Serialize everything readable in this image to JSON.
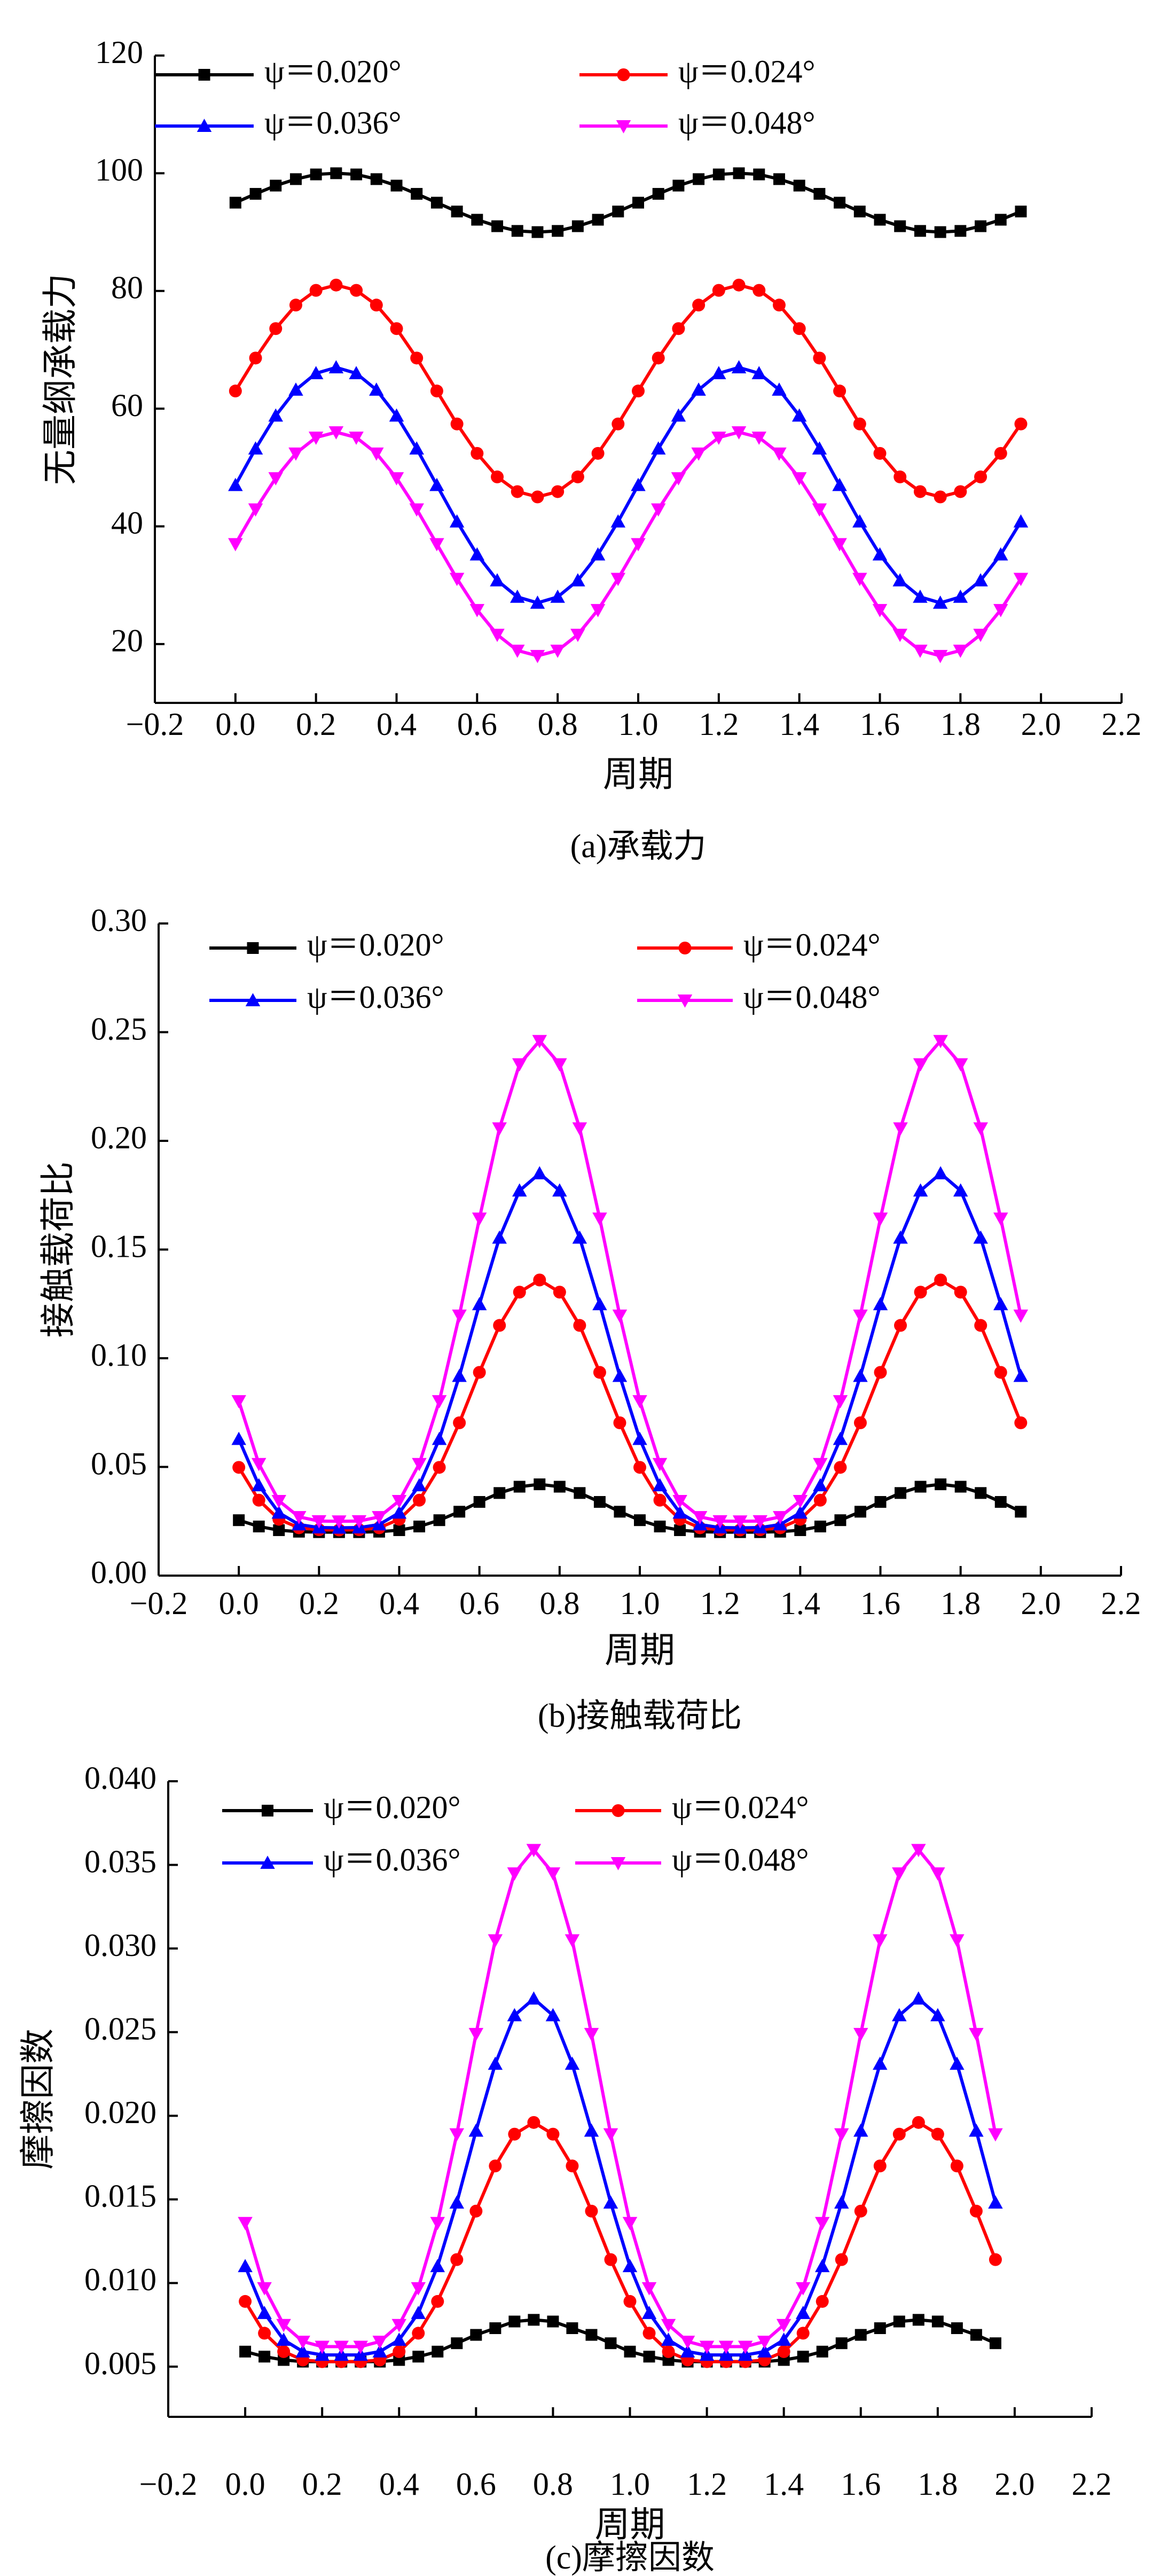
{
  "chart_data": [
    {
      "type": "line",
      "ylabel": "无量纲承载力",
      "xlabel": "周期",
      "caption": "(a)承载力",
      "x": [
        0,
        0.05,
        0.1,
        0.15,
        0.2,
        0.25,
        0.3,
        0.35,
        0.4,
        0.45,
        0.5,
        0.55,
        0.6,
        0.65,
        0.7,
        0.75,
        0.8,
        0.85,
        0.9,
        0.95,
        1,
        1.05,
        1.1,
        1.15,
        1.2,
        1.25,
        1.3,
        1.35,
        1.4,
        1.45,
        1.5,
        1.55,
        1.6,
        1.65,
        1.7,
        1.75,
        1.8,
        1.85,
        1.9,
        1.95
      ],
      "xlim": [
        -0.2,
        2.2
      ],
      "xticks": [
        {
          "value": -0.2,
          "label": "−0.2"
        },
        {
          "value": 0,
          "label": "0.0"
        },
        0.2,
        0.4,
        0.6,
        0.8,
        {
          "value": 1,
          "label": "1.0"
        },
        1.2,
        1.4,
        1.6,
        1.8,
        {
          "value": 2,
          "label": "2.0"
        },
        2.2
      ],
      "ylim": [
        10,
        120
      ],
      "yticks": [
        20,
        40,
        60,
        80,
        100,
        120
      ],
      "grid": false,
      "series": [
        {
          "name": "ψ＝0.020°",
          "color": "#000000",
          "marker": "square",
          "values": [
            95,
            96.5,
            97.9,
            99,
            99.8,
            100,
            99.8,
            99,
            97.9,
            96.5,
            95,
            93.5,
            92.1,
            91,
            90.2,
            90,
            90.2,
            91,
            92.1,
            93.5,
            95,
            96.5,
            97.9,
            99,
            99.8,
            100,
            99.8,
            99,
            97.9,
            96.5,
            95,
            93.5,
            92.1,
            91,
            90.2,
            90,
            90.2,
            91,
            92.1,
            93.5
          ]
        },
        {
          "name": "ψ＝0.024°",
          "color": "#ff0000",
          "marker": "circle",
          "values": [
            63,
            68.6,
            73.6,
            77.6,
            80.1,
            81,
            80.1,
            77.6,
            73.6,
            68.6,
            63,
            57.4,
            52.4,
            48.4,
            45.9,
            45,
            45.9,
            48.4,
            52.4,
            57.4,
            63,
            68.6,
            73.6,
            77.6,
            80.1,
            81,
            80.1,
            77.6,
            73.6,
            68.6,
            63,
            57.4,
            52.4,
            48.4,
            45.9,
            45,
            45.9,
            48.4,
            52.4,
            57.4
          ]
        },
        {
          "name": "ψ＝0.036°",
          "color": "#0000ff",
          "marker": "triangle-up",
          "values": [
            47,
            53.2,
            58.8,
            63.2,
            66,
            67,
            66,
            63.2,
            58.8,
            53.2,
            47,
            40.8,
            35.2,
            30.8,
            28,
            27,
            28,
            30.8,
            35.2,
            40.8,
            47,
            53.2,
            58.8,
            63.2,
            66,
            67,
            66,
            63.2,
            58.8,
            53.2,
            47,
            40.8,
            35.2,
            30.8,
            28,
            27,
            28,
            30.8,
            35.2,
            40.8
          ]
        },
        {
          "name": "ψ＝0.048°",
          "color": "#ff00ff",
          "marker": "triangle-down",
          "values": [
            37,
            42.9,
            48.2,
            52.4,
            55.1,
            56,
            55.1,
            52.4,
            48.2,
            42.9,
            37,
            31.1,
            25.8,
            21.6,
            18.9,
            18,
            18.9,
            21.6,
            25.8,
            31.1,
            37,
            42.9,
            48.2,
            52.4,
            55.1,
            56,
            55.1,
            52.4,
            48.2,
            42.9,
            37,
            31.1,
            25.8,
            21.6,
            18.9,
            18,
            18.9,
            21.6,
            25.8,
            31.1
          ]
        }
      ]
    },
    {
      "type": "line",
      "ylabel": "接触载荷比",
      "xlabel": "周期",
      "caption": "(b)接触载荷比",
      "x": [
        0,
        0.05,
        0.1,
        0.15,
        0.2,
        0.25,
        0.3,
        0.35,
        0.4,
        0.45,
        0.5,
        0.55,
        0.6,
        0.65,
        0.7,
        0.75,
        0.8,
        0.85,
        0.9,
        0.95,
        1,
        1.05,
        1.1,
        1.15,
        1.2,
        1.25,
        1.3,
        1.35,
        1.4,
        1.45,
        1.5,
        1.55,
        1.6,
        1.65,
        1.7,
        1.75,
        1.8,
        1.85,
        1.9,
        1.95
      ],
      "xlim": [
        -0.2,
        2.2
      ],
      "xticks": [
        {
          "value": -0.2,
          "label": "−0.2"
        },
        {
          "value": 0,
          "label": "0.0"
        },
        0.2,
        0.4,
        0.6,
        0.8,
        {
          "value": 1,
          "label": "1.0"
        },
        1.2,
        1.4,
        1.6,
        1.8,
        {
          "value": 2,
          "label": "2.0"
        },
        2.2
      ],
      "ylim": [
        0,
        0.3
      ],
      "yticks": [
        {
          "value": 0,
          "label": "0.00"
        },
        0.05,
        {
          "value": 0.1,
          "label": "0.10"
        },
        0.15,
        {
          "value": 0.2,
          "label": "0.20"
        },
        0.25,
        {
          "value": 0.3,
          "label": "0.30"
        }
      ],
      "grid": false,
      "series": [
        {
          "name": "ψ＝0.020°",
          "color": "#000000",
          "marker": "square",
          "values": [
            0.0255,
            0.0226,
            0.0209,
            0.0202,
            0.02,
            0.02,
            0.02,
            0.0202,
            0.0209,
            0.0226,
            0.0255,
            0.0294,
            0.0339,
            0.038,
            0.0409,
            0.042,
            0.0409,
            0.038,
            0.0339,
            0.0294,
            0.0255,
            0.0226,
            0.0209,
            0.0202,
            0.02,
            0.02,
            0.02,
            0.0202,
            0.0209,
            0.0226,
            0.0255,
            0.0294,
            0.0339,
            0.038,
            0.0409,
            0.042,
            0.0409,
            0.038,
            0.0339,
            0.0294
          ]
        },
        {
          "name": "ψ＝0.024°",
          "color": "#ff0000",
          "marker": "circle",
          "values": [
            0.0498,
            0.0347,
            0.0259,
            0.022,
            0.0211,
            0.021,
            0.0211,
            0.022,
            0.0259,
            0.0347,
            0.0498,
            0.0703,
            0.0935,
            0.1151,
            0.1304,
            0.136,
            0.1304,
            0.1151,
            0.0935,
            0.0703,
            0.0498,
            0.0347,
            0.0259,
            0.022,
            0.0211,
            0.021,
            0.0211,
            0.022,
            0.0259,
            0.0347,
            0.0498,
            0.0703,
            0.0935,
            0.1151,
            0.1304,
            0.136,
            0.1304,
            0.1151,
            0.0935,
            0.0703
          ]
        },
        {
          "name": "ψ＝0.036°",
          "color": "#0000ff",
          "marker": "triangle-up",
          "values": [
            0.0628,
            0.0415,
            0.0289,
            0.0235,
            0.0221,
            0.022,
            0.0221,
            0.0235,
            0.0289,
            0.0415,
            0.0628,
            0.0918,
            0.1248,
            0.1554,
            0.1771,
            0.185,
            0.1771,
            0.1554,
            0.1248,
            0.0918,
            0.0628,
            0.0415,
            0.0289,
            0.0235,
            0.0221,
            0.022,
            0.0221,
            0.0235,
            0.0289,
            0.0415,
            0.0628,
            0.0918,
            0.1248,
            0.1554,
            0.1771,
            0.185,
            0.1771,
            0.1554,
            0.1248,
            0.0918
          ]
        },
        {
          "name": "ψ＝0.048°",
          "color": "#ff00ff",
          "marker": "triangle-down",
          "values": [
            0.0803,
            0.0514,
            0.0344,
            0.027,
            0.0251,
            0.025,
            0.0251,
            0.027,
            0.0344,
            0.0514,
            0.0803,
            0.1197,
            0.1643,
            0.2058,
            0.2353,
            0.246,
            0.2353,
            0.2058,
            0.1643,
            0.1197,
            0.0803,
            0.0514,
            0.0344,
            0.027,
            0.0251,
            0.025,
            0.0251,
            0.027,
            0.0344,
            0.0514,
            0.0803,
            0.1197,
            0.1643,
            0.2058,
            0.2353,
            0.246,
            0.2353,
            0.2058,
            0.1643,
            0.1197
          ]
        }
      ]
    },
    {
      "type": "line",
      "ylabel": "摩擦因数",
      "xlabel": "周期",
      "caption": "(c)摩擦因数",
      "x": [
        0,
        0.05,
        0.1,
        0.15,
        0.2,
        0.25,
        0.3,
        0.35,
        0.4,
        0.45,
        0.5,
        0.55,
        0.6,
        0.65,
        0.7,
        0.75,
        0.8,
        0.85,
        0.9,
        0.95,
        1,
        1.05,
        1.1,
        1.15,
        1.2,
        1.25,
        1.3,
        1.35,
        1.4,
        1.45,
        1.5,
        1.55,
        1.6,
        1.65,
        1.7,
        1.75,
        1.8,
        1.85,
        1.9,
        1.95
      ],
      "xlim": [
        -0.2,
        2.2
      ],
      "xticks": [
        {
          "value": -0.2,
          "label": "−0.2"
        },
        {
          "value": 0,
          "label": "0.0"
        },
        0.2,
        0.4,
        0.6,
        0.8,
        {
          "value": 1,
          "label": "1.0"
        },
        1.2,
        1.4,
        1.6,
        1.8,
        {
          "value": 2,
          "label": "2.0"
        },
        2.2
      ],
      "ylim": [
        0.002,
        0.04
      ],
      "yticks": [
        0.005,
        {
          "value": 0.01,
          "label": "0.010"
        },
        0.015,
        {
          "value": 0.02,
          "label": "0.020"
        },
        0.025,
        {
          "value": 0.03,
          "label": "0.030"
        },
        0.035,
        {
          "value": 0.04,
          "label": "0.040"
        }
      ],
      "grid": false,
      "series": [
        {
          "name": "ψ＝0.020°",
          "color": "#000000",
          "marker": "square",
          "values": [
            0.0059,
            0.0056,
            0.0054,
            0.0053,
            0.0053,
            0.0053,
            0.0053,
            0.0053,
            0.0054,
            0.0056,
            0.0059,
            0.0064,
            0.0069,
            0.0073,
            0.0077,
            0.0078,
            0.0077,
            0.0073,
            0.0069,
            0.0064,
            0.0059,
            0.0056,
            0.0054,
            0.0053,
            0.0053,
            0.0053,
            0.0053,
            0.0053,
            0.0054,
            0.0056,
            0.0059,
            0.0064,
            0.0069,
            0.0073,
            0.0077,
            0.0078,
            0.0077,
            0.0073,
            0.0069,
            0.0064
          ]
        },
        {
          "name": "ψ＝0.024°",
          "color": "#ff0000",
          "marker": "circle",
          "values": [
            0.0089,
            0.007,
            0.0059,
            0.0054,
            0.0053,
            0.0053,
            0.0053,
            0.0054,
            0.0059,
            0.007,
            0.0089,
            0.0114,
            0.0143,
            0.017,
            0.0189,
            0.0196,
            0.0189,
            0.017,
            0.0143,
            0.0114,
            0.0089,
            0.007,
            0.0059,
            0.0054,
            0.0053,
            0.0053,
            0.0053,
            0.0054,
            0.0059,
            0.007,
            0.0089,
            0.0114,
            0.0143,
            0.017,
            0.0189,
            0.0196,
            0.0189,
            0.017,
            0.0143,
            0.0114
          ]
        },
        {
          "name": "ψ＝0.036°",
          "color": "#0000ff",
          "marker": "triangle-up",
          "values": [
            0.011,
            0.0082,
            0.0066,
            0.0059,
            0.0057,
            0.0057,
            0.0057,
            0.0059,
            0.0066,
            0.0082,
            0.011,
            0.0148,
            0.0191,
            0.0231,
            0.026,
            0.027,
            0.026,
            0.0231,
            0.0191,
            0.0148,
            0.011,
            0.0082,
            0.0066,
            0.0059,
            0.0057,
            0.0057,
            0.0057,
            0.0059,
            0.0066,
            0.0082,
            0.011,
            0.0148,
            0.0191,
            0.0231,
            0.026,
            0.027,
            0.026,
            0.0231,
            0.0191,
            0.0148
          ]
        },
        {
          "name": "ψ＝0.048°",
          "color": "#ff00ff",
          "marker": "triangle-down",
          "values": [
            0.0136,
            0.0097,
            0.0075,
            0.0065,
            0.0062,
            0.0062,
            0.0062,
            0.0065,
            0.0075,
            0.0097,
            0.0136,
            0.0189,
            0.0249,
            0.0305,
            0.0345,
            0.0359,
            0.0345,
            0.0305,
            0.0249,
            0.0189,
            0.0136,
            0.0097,
            0.0075,
            0.0065,
            0.0062,
            0.0062,
            0.0062,
            0.0065,
            0.0075,
            0.0097,
            0.0136,
            0.0189,
            0.0249,
            0.0305,
            0.0345,
            0.0359,
            0.0345,
            0.0305,
            0.0249,
            0.0189
          ]
        }
      ]
    }
  ]
}
